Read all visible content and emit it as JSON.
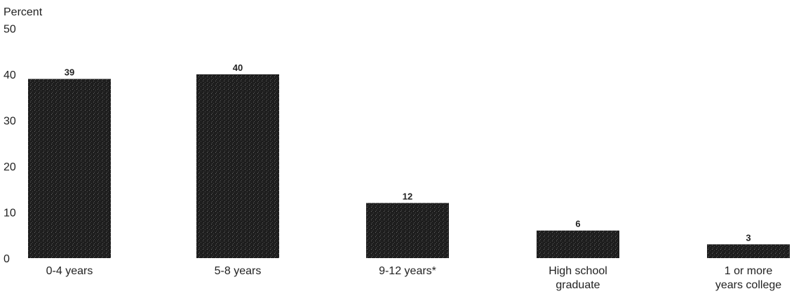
{
  "chart_data": {
    "type": "bar",
    "ylabel": "Percent",
    "ylim": [
      0,
      50
    ],
    "yticks": [
      0,
      10,
      20,
      30,
      40,
      50
    ],
    "grid": false,
    "legend": "none",
    "categories": [
      [
        "0-4 years"
      ],
      [
        "5-8 years"
      ],
      [
        "9-12 years*"
      ],
      [
        "High school",
        "graduate"
      ],
      [
        "1 or more",
        "years college"
      ]
    ],
    "values": [
      39,
      40,
      12,
      6,
      3
    ],
    "data_labels": [
      "39",
      "40",
      "12",
      "6",
      "3"
    ],
    "bar_color": "#1e1e1e"
  }
}
